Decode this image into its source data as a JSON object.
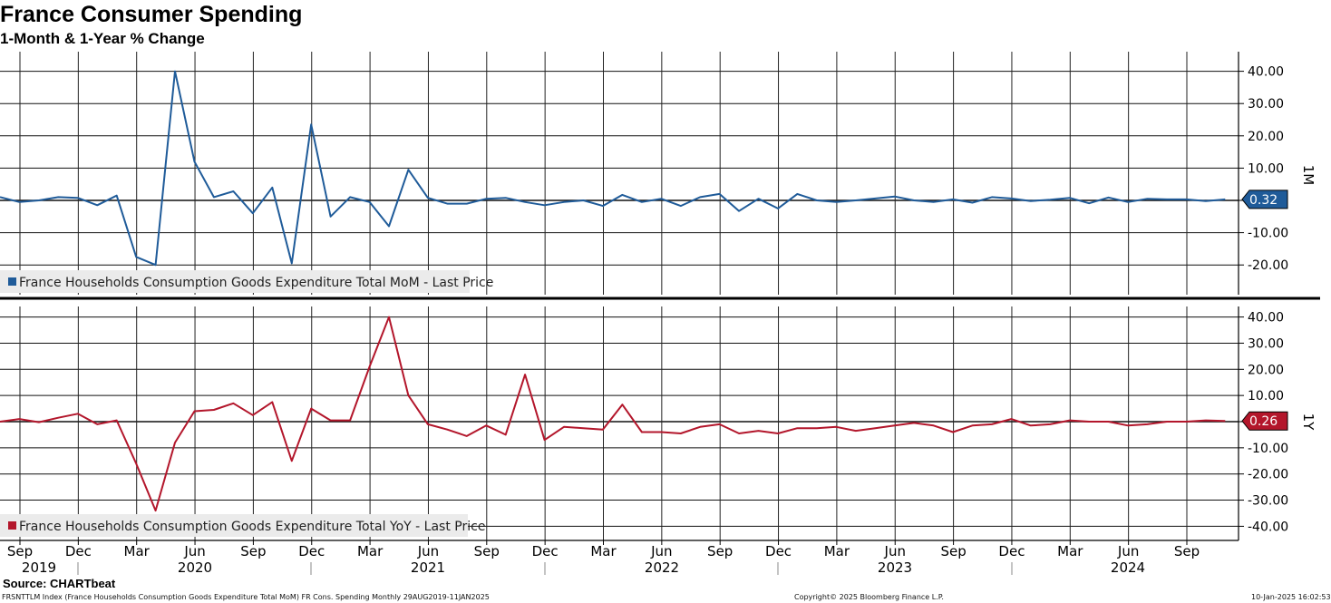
{
  "title": "France Consumer Spending",
  "subtitle": "1-Month & 1-Year % Change",
  "source": "Source: CHARTbeat",
  "footer": {
    "left": "FRSNTTLM Index (France Households Consumption Goods Expenditure Total MoM) FR Cons. Spending  Monthly 29AUG2019-11JAN2025",
    "middle": "Copyright© 2025 Bloomberg Finance L.P.",
    "right": "10-Jan-2025 16:02:53"
  },
  "chart_data": [
    {
      "type": "line",
      "panel": "top",
      "axis_name": "1M",
      "series": [
        {
          "name": "France Households Consumption Goods Expenditure Total MoM - Last Price",
          "color": "#1f5b99",
          "last_value": "0.32",
          "values": [
            1.0,
            -0.5,
            0.0,
            1.0,
            0.8,
            -1.5,
            1.5,
            -17.5,
            -20.0,
            40.0,
            12.0,
            1.0,
            2.8,
            -4.0,
            4.0,
            -19.5,
            23.5,
            -5.0,
            1.0,
            -0.5,
            -8.0,
            9.5,
            0.8,
            -1.0,
            -1.0,
            0.5,
            0.8,
            -0.5,
            -1.5,
            -0.5,
            0.0,
            -1.7,
            1.7,
            -0.5,
            0.5,
            -1.7,
            1.0,
            2.0,
            -3.3,
            0.5,
            -2.5,
            2.0,
            0.0,
            -0.5,
            0.0,
            0.6,
            1.2,
            0.0,
            -0.5,
            0.3,
            -0.7,
            1.0,
            0.6,
            -0.2,
            0.2,
            0.8,
            -0.9,
            0.9,
            -0.5,
            0.5,
            0.3,
            0.3,
            -0.2,
            0.32
          ]
        }
      ],
      "ylim": [
        -28,
        43
      ],
      "yticks": [
        -20,
        -10,
        0,
        10,
        20,
        30,
        40
      ],
      "ytick_labels": [
        "-20.00",
        "-10.00",
        "",
        "10.00",
        "20.00",
        "30.00",
        "40.00"
      ]
    },
    {
      "type": "line",
      "panel": "bottom",
      "axis_name": "1Y",
      "series": [
        {
          "name": "France Households Consumption Goods Expenditure Total YoY - Last Price",
          "color": "#b3162b",
          "last_value": "0.26",
          "values": [
            0.0,
            1.0,
            -0.2,
            1.5,
            3.0,
            -1.0,
            0.5,
            -16.0,
            -34.0,
            -8.0,
            4.0,
            4.5,
            7.0,
            2.5,
            7.5,
            -15.0,
            5.0,
            0.5,
            0.5,
            21.0,
            40.0,
            10.0,
            -1.0,
            -3.0,
            -5.5,
            -1.5,
            -5.0,
            18.0,
            -7.0,
            -2.0,
            -2.5,
            -3.0,
            6.5,
            -4.0,
            -4.0,
            -4.5,
            -2.0,
            -1.0,
            -4.5,
            -3.5,
            -4.5,
            -2.5,
            -2.5,
            -2.0,
            -3.5,
            -2.5,
            -1.5,
            -0.5,
            -1.5,
            -4.0,
            -1.5,
            -1.0,
            1.0,
            -1.5,
            -1.0,
            0.5,
            0.0,
            0.0,
            -1.5,
            -1.0,
            0.0,
            0.0,
            0.5,
            0.26
          ]
        }
      ],
      "ylim": [
        -44,
        44
      ],
      "yticks": [
        -40,
        -30,
        -20,
        -10,
        0,
        10,
        20,
        30,
        40
      ],
      "ytick_labels": [
        "-40.00",
        "-30.00",
        "-20.00",
        "-10.00",
        "",
        "10.00",
        "20.00",
        "30.00",
        "40.00"
      ]
    }
  ],
  "x_axis": {
    "months": [
      "Sep",
      "Dec",
      "Mar",
      "Jun",
      "Sep",
      "Dec",
      "Mar",
      "Jun",
      "Sep",
      "Dec",
      "Mar",
      "Jun",
      "Sep",
      "Dec",
      "Mar",
      "Jun",
      "Sep",
      "Dec",
      "Mar",
      "Jun",
      "Sep"
    ],
    "years": [
      "2019",
      "2020",
      "2021",
      "2022",
      "2023",
      "2024"
    ]
  }
}
